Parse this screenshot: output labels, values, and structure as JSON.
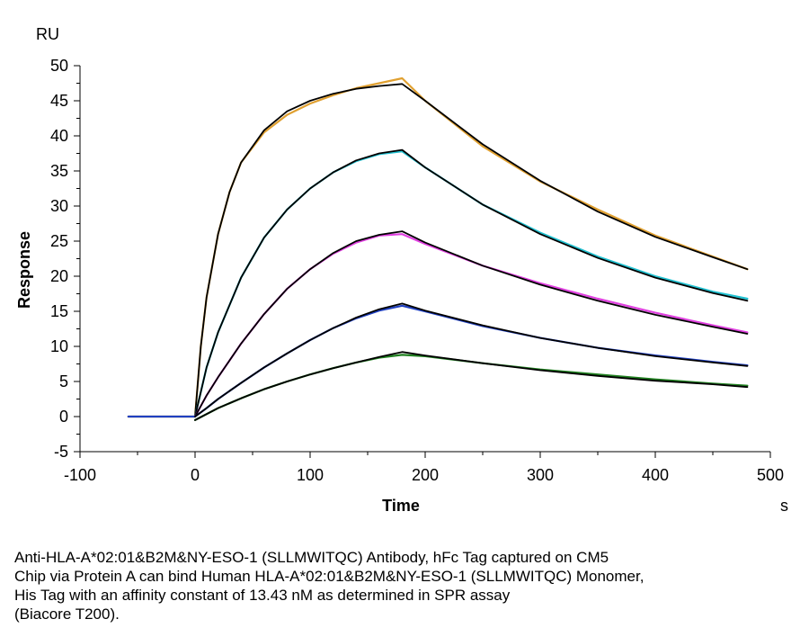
{
  "chart_data": {
    "type": "line",
    "title": "",
    "xlabel": "Time",
    "ylabel": "Response",
    "x_unit": "s",
    "y_unit": "RU",
    "xlim": [
      -100,
      500
    ],
    "ylim": [
      -5,
      50
    ],
    "x_ticks": [
      "-100",
      "0",
      "100",
      "200",
      "300",
      "400",
      "500"
    ],
    "y_ticks": [
      "-5",
      "0",
      "5",
      "10",
      "15",
      "20",
      "25",
      "30",
      "35",
      "40",
      "45",
      "50"
    ],
    "grid": false,
    "legend": "none",
    "series": [
      {
        "color": "#e0a030",
        "points": [
          [
            -58,
            0
          ],
          [
            -30,
            0
          ],
          [
            0,
            0
          ],
          [
            5,
            10
          ],
          [
            10,
            17
          ],
          [
            20,
            26
          ],
          [
            30,
            32
          ],
          [
            40,
            36.2
          ],
          [
            60,
            40.5
          ],
          [
            80,
            43
          ],
          [
            100,
            44.6
          ],
          [
            120,
            45.8
          ],
          [
            140,
            46.8
          ],
          [
            160,
            47.5
          ],
          [
            180,
            48.2
          ],
          [
            200,
            45
          ],
          [
            250,
            38.5
          ],
          [
            300,
            33.5
          ],
          [
            350,
            29.5
          ],
          [
            400,
            25.8
          ],
          [
            450,
            22.8
          ],
          [
            480,
            21
          ]
        ]
      },
      {
        "color": "#000000",
        "points": [
          [
            -58,
            0
          ],
          [
            -30,
            0
          ],
          [
            0,
            0
          ],
          [
            5,
            10
          ],
          [
            10,
            17
          ],
          [
            20,
            26
          ],
          [
            30,
            32
          ],
          [
            40,
            36.2
          ],
          [
            60,
            40.8
          ],
          [
            80,
            43.5
          ],
          [
            100,
            45
          ],
          [
            120,
            46
          ],
          [
            140,
            46.7
          ],
          [
            160,
            47.1
          ],
          [
            180,
            47.4
          ],
          [
            200,
            45
          ],
          [
            250,
            38.8
          ],
          [
            300,
            33.6
          ],
          [
            350,
            29.2
          ],
          [
            400,
            25.6
          ],
          [
            450,
            22.7
          ],
          [
            480,
            21
          ]
        ]
      },
      {
        "color": "#20c0d0",
        "points": [
          [
            0,
            0
          ],
          [
            10,
            7
          ],
          [
            20,
            12
          ],
          [
            40,
            19.8
          ],
          [
            60,
            25.5
          ],
          [
            80,
            29.5
          ],
          [
            100,
            32.5
          ],
          [
            120,
            34.8
          ],
          [
            140,
            36.4
          ],
          [
            160,
            37.4
          ],
          [
            180,
            37.8
          ],
          [
            200,
            35.5
          ],
          [
            250,
            30.2
          ],
          [
            300,
            26.2
          ],
          [
            350,
            22.8
          ],
          [
            400,
            20
          ],
          [
            450,
            17.8
          ],
          [
            480,
            16.8
          ]
        ]
      },
      {
        "color": "#000000",
        "points": [
          [
            0,
            0
          ],
          [
            10,
            7
          ],
          [
            20,
            12
          ],
          [
            40,
            19.8
          ],
          [
            60,
            25.5
          ],
          [
            80,
            29.5
          ],
          [
            100,
            32.5
          ],
          [
            120,
            34.8
          ],
          [
            140,
            36.5
          ],
          [
            160,
            37.5
          ],
          [
            180,
            38
          ],
          [
            200,
            35.5
          ],
          [
            250,
            30.2
          ],
          [
            300,
            26
          ],
          [
            350,
            22.6
          ],
          [
            400,
            19.8
          ],
          [
            450,
            17.6
          ],
          [
            480,
            16.5
          ]
        ]
      },
      {
        "color": "#e040e0",
        "points": [
          [
            0,
            0
          ],
          [
            10,
            3
          ],
          [
            20,
            5.6
          ],
          [
            40,
            10.4
          ],
          [
            60,
            14.6
          ],
          [
            80,
            18.2
          ],
          [
            100,
            21
          ],
          [
            120,
            23.2
          ],
          [
            140,
            24.8
          ],
          [
            160,
            25.8
          ],
          [
            180,
            26
          ],
          [
            200,
            24.6
          ],
          [
            250,
            21.5
          ],
          [
            300,
            19
          ],
          [
            350,
            16.8
          ],
          [
            400,
            14.8
          ],
          [
            450,
            13
          ],
          [
            480,
            12
          ]
        ]
      },
      {
        "color": "#000000",
        "points": [
          [
            0,
            0
          ],
          [
            10,
            3
          ],
          [
            20,
            5.6
          ],
          [
            40,
            10.4
          ],
          [
            60,
            14.6
          ],
          [
            80,
            18.2
          ],
          [
            100,
            21
          ],
          [
            120,
            23.3
          ],
          [
            140,
            25
          ],
          [
            160,
            25.9
          ],
          [
            180,
            26.4
          ],
          [
            200,
            24.8
          ],
          [
            250,
            21.5
          ],
          [
            300,
            18.8
          ],
          [
            350,
            16.5
          ],
          [
            400,
            14.5
          ],
          [
            450,
            12.8
          ],
          [
            480,
            11.8
          ]
        ]
      },
      {
        "color": "#2040c0",
        "points": [
          [
            -58,
            0
          ],
          [
            -30,
            0
          ],
          [
            0,
            0
          ],
          [
            10,
            1.2
          ],
          [
            20,
            2.5
          ],
          [
            40,
            4.8
          ],
          [
            60,
            7
          ],
          [
            80,
            9
          ],
          [
            100,
            10.9
          ],
          [
            120,
            12.6
          ],
          [
            140,
            14
          ],
          [
            160,
            15.1
          ],
          [
            180,
            15.8
          ],
          [
            200,
            15
          ],
          [
            250,
            12.9
          ],
          [
            300,
            11.2
          ],
          [
            350,
            9.8
          ],
          [
            400,
            8.7
          ],
          [
            450,
            7.8
          ],
          [
            480,
            7.3
          ]
        ]
      },
      {
        "color": "#000000",
        "points": [
          [
            0,
            0
          ],
          [
            10,
            1.2
          ],
          [
            20,
            2.5
          ],
          [
            40,
            4.8
          ],
          [
            60,
            7
          ],
          [
            80,
            9
          ],
          [
            100,
            10.9
          ],
          [
            120,
            12.6
          ],
          [
            140,
            14.1
          ],
          [
            160,
            15.3
          ],
          [
            180,
            16.1
          ],
          [
            200,
            15.1
          ],
          [
            250,
            13
          ],
          [
            300,
            11.2
          ],
          [
            350,
            9.8
          ],
          [
            400,
            8.6
          ],
          [
            450,
            7.7
          ],
          [
            480,
            7.2
          ]
        ]
      },
      {
        "color": "#208020",
        "points": [
          [
            0,
            -0.5
          ],
          [
            20,
            1.2
          ],
          [
            40,
            2.6
          ],
          [
            60,
            3.9
          ],
          [
            80,
            5
          ],
          [
            100,
            6
          ],
          [
            120,
            6.9
          ],
          [
            140,
            7.7
          ],
          [
            160,
            8.4
          ],
          [
            180,
            8.8
          ],
          [
            200,
            8.6
          ],
          [
            250,
            7.6
          ],
          [
            300,
            6.7
          ],
          [
            350,
            6
          ],
          [
            400,
            5.3
          ],
          [
            450,
            4.7
          ],
          [
            480,
            4.4
          ]
        ]
      },
      {
        "color": "#000000",
        "points": [
          [
            0,
            -0.5
          ],
          [
            20,
            1.2
          ],
          [
            40,
            2.6
          ],
          [
            60,
            3.9
          ],
          [
            80,
            5
          ],
          [
            100,
            6
          ],
          [
            120,
            6.9
          ],
          [
            140,
            7.7
          ],
          [
            160,
            8.5
          ],
          [
            180,
            9.2
          ],
          [
            200,
            8.7
          ],
          [
            250,
            7.6
          ],
          [
            300,
            6.6
          ],
          [
            350,
            5.8
          ],
          [
            400,
            5.1
          ],
          [
            450,
            4.6
          ],
          [
            480,
            4.2
          ]
        ]
      }
    ]
  },
  "caption": {
    "lines": [
      "Anti-HLA-A*02:01&B2M&NY-ESO-1 (SLLMWITQC) Antibody, hFc Tag captured on CM5",
      "Chip via Protein A can bind Human HLA-A*02:01&B2M&NY-ESO-1 (SLLMWITQC) Monomer,",
      "His Tag with an affinity constant of 13.43 nM as determined in SPR assay",
      "(Biacore T200)."
    ]
  }
}
